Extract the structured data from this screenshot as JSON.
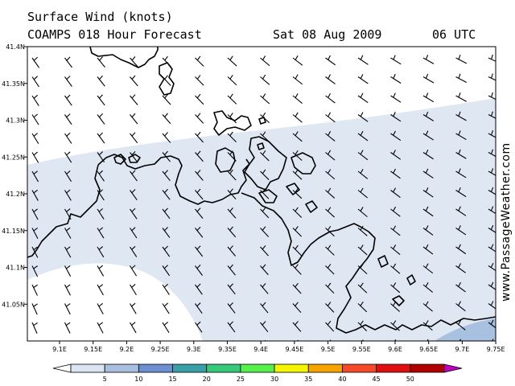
{
  "header": {
    "title": "Surface Wind (knots)",
    "model": "COAMPS 018 Hour Forecast",
    "date": "Sat 08 Aug 2009",
    "time": "06 UTC"
  },
  "watermark": "www.PassageWeather.com",
  "map": {
    "lat_ticks": [
      "41.4N",
      "41.35N",
      "41.3N",
      "41.25N",
      "41.2N",
      "41.15N",
      "41.1N",
      "41.05N"
    ],
    "lon_ticks": [
      "9.1E",
      "9.15E",
      "9.2E",
      "9.25E",
      "9.3E",
      "9.35E",
      "9.4E",
      "9.45E",
      "9.5E",
      "9.55E",
      "9.6E",
      "9.65E",
      "9.7E",
      "9.75E"
    ],
    "colors": {
      "calm": "#ffffff",
      "band_5_10": "#dfe7f3",
      "band_10_15": "#a9c1e1",
      "coastline": "#000000"
    }
  },
  "colorbar": {
    "labels": [
      "5",
      "10",
      "15",
      "20",
      "25",
      "30",
      "35",
      "40",
      "45",
      "50"
    ],
    "colors": [
      "#ffffff",
      "#dbe4f3",
      "#a9bfe0",
      "#6b8fd1",
      "#3aa0a8",
      "#36c97a",
      "#56f04a",
      "#f5f500",
      "#f7a300",
      "#f54a2a",
      "#e01010",
      "#b00000",
      "#c000c0"
    ]
  }
}
